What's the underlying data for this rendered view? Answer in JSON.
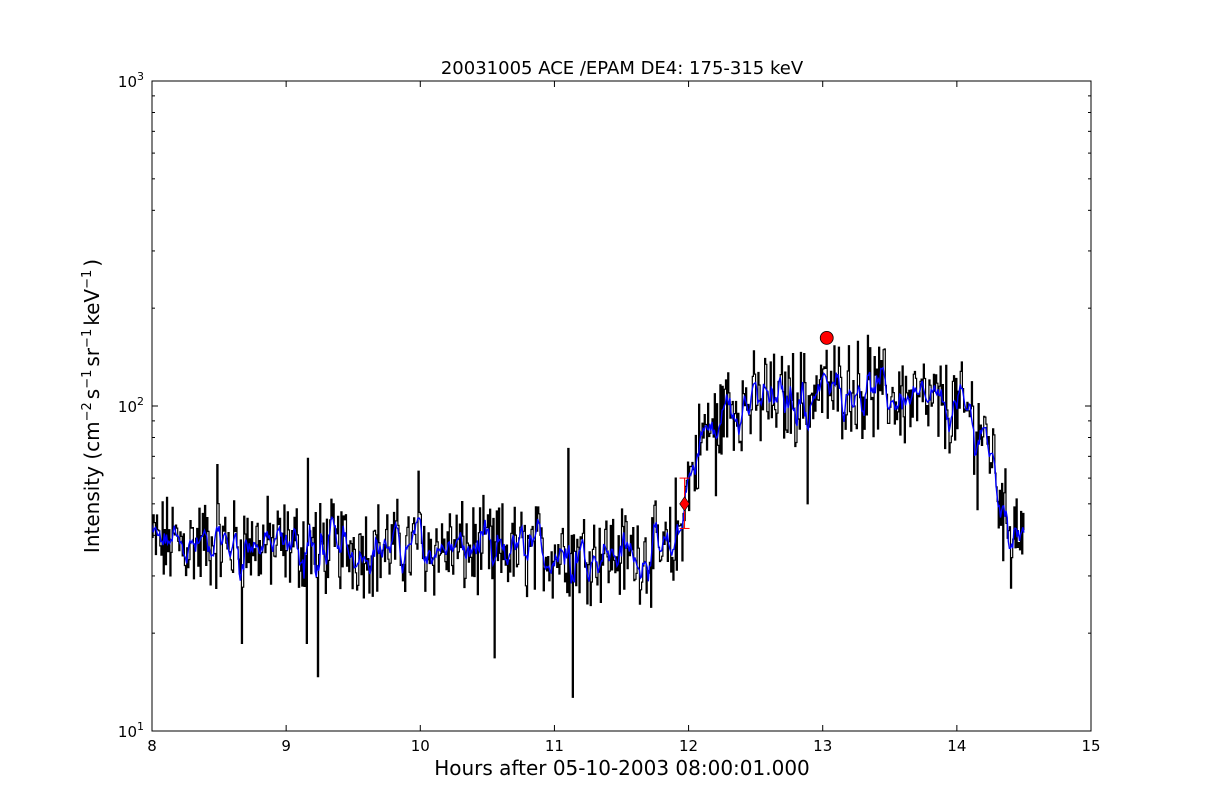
{
  "chart_data": {
    "type": "line",
    "title": "20031005 ACE /EPAM DE4: 175-315 keV",
    "xlabel": "Hours after 05-10-2003 08:00:01.000",
    "ylabel": {
      "prefix": "Intensity (cm",
      "sup1": "−2",
      "mid1": "s",
      "sup2": "−1",
      "mid2": "sr",
      "sup3": "−1",
      "mid3": "keV",
      "sup4": "−1",
      "suffix": ")"
    },
    "xlim": [
      8,
      15
    ],
    "ylim": [
      10,
      1000
    ],
    "yscale": "log",
    "xticks": [
      8,
      9,
      10,
      11,
      12,
      13,
      14,
      15
    ],
    "xtick_labels": [
      "8",
      "9",
      "10",
      "11",
      "12",
      "13",
      "14",
      "15"
    ],
    "yticks": [
      10,
      100,
      1000
    ],
    "ytick_labels": [
      {
        "base": "10",
        "exp": "1"
      },
      {
        "base": "10",
        "exp": "2"
      },
      {
        "base": "10",
        "exp": "3"
      }
    ],
    "grid": false,
    "series": [
      {
        "style": "raw",
        "color": "#000000",
        "baseline": [
          [
            8.0,
            38
          ],
          [
            11.9,
            35
          ],
          [
            11.98,
            55
          ],
          [
            12.1,
            80
          ],
          [
            12.3,
            100
          ],
          [
            12.7,
            105
          ],
          [
            13.2,
            115
          ],
          [
            13.6,
            105
          ],
          [
            14.1,
            95
          ],
          [
            14.25,
            75
          ],
          [
            14.35,
            45
          ],
          [
            14.5,
            42
          ]
        ],
        "x_end": 14.5,
        "spikes": [
          [
            8.67,
            18.6
          ],
          [
            9.15,
            18.6
          ],
          [
            9.23,
            14.7
          ],
          [
            9.16,
            69
          ],
          [
            8.48,
            66
          ],
          [
            9.98,
            63
          ],
          [
            11.1,
            74
          ],
          [
            11.13,
            12.7
          ],
          [
            10.55,
            16.8
          ],
          [
            11.9,
            60
          ],
          [
            12.2,
            53
          ],
          [
            12.88,
            50
          ],
          [
            13.33,
            165
          ],
          [
            13.0,
            130
          ],
          [
            14.15,
            48
          ],
          [
            14.4,
            27.5
          ],
          [
            12.57,
            140
          ]
        ]
      },
      {
        "style": "smoothed",
        "color": "#0000ff"
      }
    ],
    "markers": [
      {
        "shape": "diamond",
        "x": 11.97,
        "y": 50,
        "color": "#ff0000",
        "yerr": [
          42,
          60
        ]
      },
      {
        "shape": "circle",
        "x": 13.03,
        "y": 162,
        "color": "#ff0000"
      }
    ]
  }
}
